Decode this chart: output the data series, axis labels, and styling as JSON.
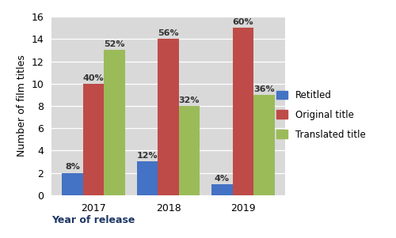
{
  "years": [
    "2017",
    "2018",
    "2019"
  ],
  "retitled": [
    2,
    3,
    1
  ],
  "original": [
    10,
    14,
    15
  ],
  "translated": [
    13,
    8,
    9
  ],
  "retitled_pct": [
    "8%",
    "12%",
    "4%"
  ],
  "original_pct": [
    "40%",
    "56%",
    "60%"
  ],
  "translated_pct": [
    "52%",
    "32%",
    "36%"
  ],
  "colors": {
    "retitled": "#4472C4",
    "original": "#BE4B48",
    "translated": "#9BBB59"
  },
  "ylabel": "Number of film titles",
  "xlabel": "Year of release",
  "ylim": [
    0,
    16
  ],
  "yticks": [
    0,
    2,
    4,
    6,
    8,
    10,
    12,
    14,
    16
  ],
  "legend_labels": [
    "Retitled",
    "Original title",
    "Translated title"
  ],
  "plot_bg_color": "#D9D9D9",
  "fig_bg_color": "#FFFFFF",
  "bar_width": 0.28,
  "label_fontsize": 8,
  "axis_label_fontsize": 9,
  "tick_fontsize": 9
}
